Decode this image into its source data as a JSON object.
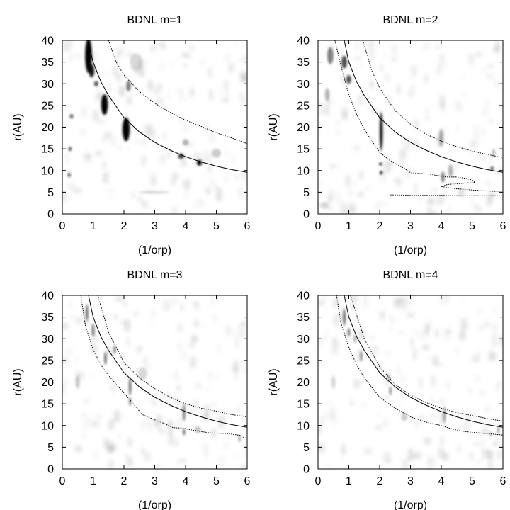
{
  "chart_data": [
    {
      "type": "heatmap",
      "title": "BDNL m=1",
      "xlabel": "(1/orp)",
      "ylabel": "r(AU)",
      "xlim": [
        0,
        6
      ],
      "ylim": [
        0,
        40
      ],
      "xticks": [
        0,
        1,
        2,
        3,
        4,
        5,
        6
      ],
      "yticks": [
        0,
        5,
        10,
        15,
        20,
        25,
        30,
        35,
        40
      ],
      "series": [
        {
          "style": "solid",
          "x": [
            0.82,
            1.0,
            1.25,
            1.5,
            2.0,
            2.5,
            3.0,
            3.5,
            4.0,
            4.5,
            5.0,
            5.5,
            6.0
          ],
          "y": [
            40.0,
            35.0,
            30.5,
            27.3,
            22.2,
            18.9,
            16.5,
            14.7,
            13.2,
            12.0,
            11.0,
            10.2,
            9.6
          ]
        },
        {
          "style": "dotted",
          "x": [
            1.5,
            1.75,
            2.0,
            2.5,
            3.0,
            3.5,
            4.0,
            4.5,
            5.0,
            5.5,
            6.0
          ],
          "y": [
            40.0,
            35.0,
            32.0,
            28.2,
            25.5,
            23.4,
            21.6,
            20.2,
            18.7,
            17.5,
            16.2
          ]
        }
      ],
      "blobs": [
        {
          "x": 0.85,
          "y": 36.5,
          "w": 0.22,
          "h": 8.0,
          "d": 1.0
        },
        {
          "x": 0.95,
          "y": 33.0,
          "w": 0.18,
          "h": 3.0,
          "d": 0.9
        },
        {
          "x": 1.1,
          "y": 30.0,
          "w": 0.12,
          "h": 1.2,
          "d": 0.8
        },
        {
          "x": 1.37,
          "y": 25.2,
          "w": 0.22,
          "h": 4.8,
          "d": 1.0
        },
        {
          "x": 2.07,
          "y": 19.5,
          "w": 0.24,
          "h": 5.5,
          "d": 1.0
        },
        {
          "x": 2.15,
          "y": 29.5,
          "w": 0.15,
          "h": 2.5,
          "d": 0.5
        },
        {
          "x": 3.85,
          "y": 13.3,
          "w": 0.18,
          "h": 1.2,
          "d": 0.8
        },
        {
          "x": 4.45,
          "y": 11.8,
          "w": 0.16,
          "h": 1.4,
          "d": 1.0
        },
        {
          "x": 0.25,
          "y": 15.0,
          "w": 0.1,
          "h": 1.0,
          "d": 0.7
        },
        {
          "x": 0.22,
          "y": 9.0,
          "w": 0.1,
          "h": 1.0,
          "d": 0.7
        },
        {
          "x": 0.3,
          "y": 22.5,
          "w": 0.12,
          "h": 1.0,
          "d": 0.6
        },
        {
          "x": 4.0,
          "y": 16.5,
          "w": 0.2,
          "h": 1.5,
          "d": 0.3
        },
        {
          "x": 5.0,
          "y": 14.0,
          "w": 0.3,
          "h": 2.0,
          "d": 0.2
        },
        {
          "x": 2.4,
          "y": 35.0,
          "w": 0.4,
          "h": 4.0,
          "d": 0.15
        },
        {
          "x": 3.0,
          "y": 5.0,
          "w": 1.0,
          "h": 0.4,
          "d": 0.2
        }
      ]
    },
    {
      "type": "heatmap",
      "title": "BDNL m=2",
      "xlabel": "(1/orp)",
      "ylabel": "r(AU)",
      "xlim": [
        0,
        6
      ],
      "ylim": [
        0,
        40
      ],
      "xticks": [
        0,
        1,
        2,
        3,
        4,
        5,
        6
      ],
      "yticks": [
        0,
        5,
        10,
        15,
        20,
        25,
        30,
        35,
        40
      ],
      "series": [
        {
          "style": "solid",
          "x": [
            0.85,
            1.0,
            1.25,
            1.5,
            2.0,
            2.5,
            3.0,
            3.5,
            4.0,
            4.5,
            5.0,
            5.5,
            6.0
          ],
          "y": [
            40.0,
            35.0,
            30.5,
            27.3,
            22.2,
            18.9,
            16.5,
            14.7,
            13.2,
            12.0,
            11.0,
            10.2,
            9.6
          ]
        },
        {
          "style": "dotted",
          "x": [
            1.45,
            1.75,
            2.0,
            2.5,
            3.0,
            3.5,
            4.0,
            4.5,
            5.0,
            5.5,
            6.0
          ],
          "y": [
            40.0,
            33.0,
            29.0,
            23.8,
            20.7,
            18.4,
            16.8,
            15.5,
            14.5,
            13.7,
            13.0
          ]
        },
        {
          "style": "dotted",
          "x": [
            0.55,
            0.75,
            1.0,
            1.25,
            1.5,
            1.75,
            2.0,
            2.3,
            2.6,
            2.8,
            3.0,
            3.3,
            3.6,
            3.9,
            4.2,
            4.5,
            4.8,
            5.0,
            5.1,
            4.6,
            4.2,
            4.0,
            4.5,
            5.0,
            5.5,
            6.0
          ],
          "y": [
            40.0,
            34.0,
            27.5,
            23.0,
            19.5,
            16.8,
            14.2,
            12.5,
            11.2,
            10.5,
            9.5,
            9.3,
            9.2,
            8.8,
            8.5,
            8.5,
            8.2,
            7.8,
            7.3,
            7.0,
            6.8,
            6.3,
            5.8,
            5.5,
            5.3,
            5.1
          ]
        },
        {
          "style": "dotted",
          "x": [
            2.35,
            3.0,
            3.5,
            4.0,
            4.5,
            5.0,
            5.5,
            6.0
          ],
          "y": [
            4.4,
            4.3,
            4.3,
            4.3,
            4.2,
            4.2,
            4.2,
            4.2
          ]
        }
      ],
      "blobs": [
        {
          "x": 0.4,
          "y": 36.5,
          "w": 0.2,
          "h": 4.0,
          "d": 0.5
        },
        {
          "x": 0.85,
          "y": 35.0,
          "w": 0.18,
          "h": 3.0,
          "d": 0.7
        },
        {
          "x": 1.0,
          "y": 31.0,
          "w": 0.15,
          "h": 2.0,
          "d": 0.7
        },
        {
          "x": 2.05,
          "y": 19.0,
          "w": 0.1,
          "h": 9.0,
          "d": 0.95
        },
        {
          "x": 2.05,
          "y": 9.5,
          "w": 0.09,
          "h": 0.8,
          "d": 1.0
        },
        {
          "x": 2.03,
          "y": 11.5,
          "w": 0.09,
          "h": 0.8,
          "d": 0.9
        },
        {
          "x": 4.0,
          "y": 17.5,
          "w": 0.15,
          "h": 4.0,
          "d": 0.35
        },
        {
          "x": 4.05,
          "y": 8.5,
          "w": 0.12,
          "h": 2.5,
          "d": 0.5
        },
        {
          "x": 4.3,
          "y": 10.0,
          "w": 0.15,
          "h": 3.0,
          "d": 0.3
        },
        {
          "x": 5.65,
          "y": 10.5,
          "w": 0.08,
          "h": 0.7,
          "d": 1.0
        },
        {
          "x": 5.7,
          "y": 14.0,
          "w": 0.08,
          "h": 2.0,
          "d": 0.35
        },
        {
          "x": 0.3,
          "y": 27.5,
          "w": 0.15,
          "h": 3.0,
          "d": 0.3
        },
        {
          "x": 0.2,
          "y": 2.0,
          "w": 0.3,
          "h": 1.5,
          "d": 0.15
        }
      ]
    },
    {
      "type": "heatmap",
      "title": "BDNL m=3",
      "xlabel": "(1/orp)",
      "ylabel": "r(AU)",
      "xlim": [
        0,
        6
      ],
      "ylim": [
        0,
        40
      ],
      "xticks": [
        0,
        1,
        2,
        3,
        4,
        5,
        6
      ],
      "yticks": [
        0,
        5,
        10,
        15,
        20,
        25,
        30,
        35,
        40
      ],
      "series": [
        {
          "style": "solid",
          "x": [
            0.85,
            1.0,
            1.25,
            1.5,
            2.0,
            2.5,
            3.0,
            3.5,
            4.0,
            4.5,
            5.0,
            5.5,
            6.0
          ],
          "y": [
            40.0,
            35.0,
            30.5,
            27.3,
            22.2,
            18.9,
            16.5,
            14.7,
            13.2,
            12.0,
            11.0,
            10.2,
            9.6
          ]
        },
        {
          "style": "dotted",
          "x": [
            1.15,
            1.5,
            2.0,
            2.5,
            3.0,
            3.5,
            4.0,
            4.5,
            5.0,
            5.5,
            6.0
          ],
          "y": [
            40.0,
            31.5,
            24.5,
            21.0,
            18.5,
            16.5,
            15.0,
            14.0,
            13.3,
            12.5,
            12.0
          ]
        },
        {
          "style": "dotted",
          "x": [
            0.6,
            0.75,
            1.0,
            1.25,
            1.5,
            2.0,
            2.3,
            2.6,
            3.0,
            3.3,
            3.6,
            3.9,
            4.2,
            4.5,
            4.8,
            5.2,
            5.5,
            5.8,
            5.9,
            6.0
          ],
          "y": [
            40.0,
            33.0,
            27.5,
            24.0,
            21.5,
            17.5,
            15.0,
            12.5,
            11.3,
            10.5,
            9.5,
            9.4,
            9.0,
            8.6,
            8.3,
            8.2,
            8.0,
            7.7,
            7.2,
            7.0
          ]
        }
      ],
      "blobs": [
        {
          "x": 0.8,
          "y": 36.0,
          "w": 0.08,
          "h": 4.0,
          "d": 0.6
        },
        {
          "x": 1.0,
          "y": 32.0,
          "w": 0.08,
          "h": 3.0,
          "d": 0.6
        },
        {
          "x": 1.4,
          "y": 25.5,
          "w": 0.08,
          "h": 3.0,
          "d": 0.6
        },
        {
          "x": 1.7,
          "y": 27.5,
          "w": 0.08,
          "h": 2.0,
          "d": 0.5
        },
        {
          "x": 2.2,
          "y": 19.0,
          "w": 0.08,
          "h": 4.0,
          "d": 0.6
        },
        {
          "x": 2.2,
          "y": 15.5,
          "w": 0.07,
          "h": 2.0,
          "d": 0.5
        },
        {
          "x": 3.95,
          "y": 13.0,
          "w": 0.08,
          "h": 4.0,
          "d": 0.55
        },
        {
          "x": 3.95,
          "y": 8.5,
          "w": 0.08,
          "h": 1.5,
          "d": 0.6
        },
        {
          "x": 5.75,
          "y": 7.0,
          "w": 0.07,
          "h": 1.5,
          "d": 0.4
        },
        {
          "x": 0.5,
          "y": 20.0,
          "w": 0.15,
          "h": 3.0,
          "d": 0.2
        },
        {
          "x": 2.6,
          "y": 22.0,
          "w": 0.3,
          "h": 3.0,
          "d": 0.15
        },
        {
          "x": 4.4,
          "y": 9.0,
          "w": 0.2,
          "h": 1.5,
          "d": 0.25
        }
      ]
    },
    {
      "type": "heatmap",
      "title": "BDNL m=4",
      "xlabel": "(1/orp)",
      "ylabel": "r(AU)",
      "xlim": [
        0,
        6
      ],
      "ylim": [
        0,
        40
      ],
      "xticks": [
        0,
        1,
        2,
        3,
        4,
        5,
        6
      ],
      "yticks": [
        0,
        5,
        10,
        15,
        20,
        25,
        30,
        35,
        40
      ],
      "series": [
        {
          "style": "solid",
          "x": [
            0.85,
            1.0,
            1.25,
            1.5,
            2.0,
            2.5,
            3.0,
            3.5,
            4.0,
            4.5,
            5.0,
            5.5,
            6.0
          ],
          "y": [
            40.0,
            35.0,
            30.5,
            27.3,
            22.2,
            18.9,
            16.5,
            14.7,
            13.2,
            12.0,
            11.0,
            10.2,
            9.6
          ]
        },
        {
          "style": "dotted",
          "x": [
            1.05,
            1.5,
            2.0,
            2.5,
            3.0,
            3.5,
            4.0,
            4.5,
            5.0,
            5.5,
            6.0
          ],
          "y": [
            40.0,
            30.0,
            23.5,
            19.5,
            17.0,
            15.3,
            14.0,
            13.0,
            12.3,
            11.6,
            11.0
          ]
        },
        {
          "style": "dotted",
          "x": [
            0.6,
            0.75,
            1.0,
            1.25,
            1.5,
            2.0,
            2.5,
            3.0,
            3.5,
            4.0,
            4.3,
            4.6,
            5.0,
            5.4,
            5.7,
            6.0
          ],
          "y": [
            40.0,
            33.5,
            28.0,
            24.0,
            21.0,
            16.5,
            14.0,
            12.0,
            10.8,
            10.0,
            9.3,
            8.8,
            8.4,
            8.2,
            8.0,
            7.8
          ]
        }
      ],
      "blobs": [
        {
          "x": 0.85,
          "y": 35.0,
          "w": 0.07,
          "h": 4.0,
          "d": 0.7
        },
        {
          "x": 1.0,
          "y": 31.5,
          "w": 0.07,
          "h": 2.0,
          "d": 0.6
        },
        {
          "x": 1.4,
          "y": 26.0,
          "w": 0.07,
          "h": 2.5,
          "d": 0.5
        },
        {
          "x": 1.2,
          "y": 30.0,
          "w": 0.07,
          "h": 2.0,
          "d": 0.4
        },
        {
          "x": 2.35,
          "y": 18.0,
          "w": 0.07,
          "h": 2.0,
          "d": 0.5
        },
        {
          "x": 2.3,
          "y": 21.0,
          "w": 0.07,
          "h": 2.0,
          "d": 0.35
        },
        {
          "x": 4.1,
          "y": 12.5,
          "w": 0.08,
          "h": 4.0,
          "d": 0.4
        },
        {
          "x": 5.85,
          "y": 9.0,
          "w": 0.07,
          "h": 2.0,
          "d": 0.4
        },
        {
          "x": 5.6,
          "y": 8.0,
          "w": 0.07,
          "h": 1.2,
          "d": 0.3
        },
        {
          "x": 0.5,
          "y": 20.0,
          "w": 0.15,
          "h": 3.0,
          "d": 0.15
        },
        {
          "x": 2.8,
          "y": 12.0,
          "w": 0.2,
          "h": 2.0,
          "d": 0.2
        }
      ]
    }
  ]
}
